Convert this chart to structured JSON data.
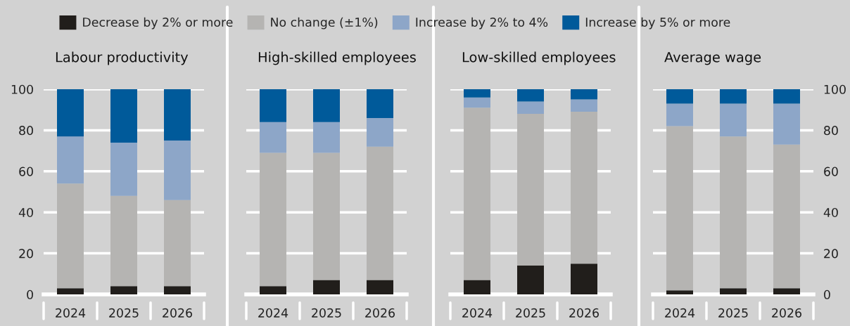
{
  "chart_data": [
    {
      "type": "bar",
      "title": "Labour productivity",
      "categories": [
        "2024",
        "2025",
        "2026"
      ],
      "stacked": true,
      "legend": "top",
      "grid": "y",
      "ylim": [
        0,
        100
      ],
      "yticks": [
        0,
        20,
        40,
        60,
        80,
        100
      ],
      "series": [
        {
          "name": "Decrease by 2% or more",
          "color": "#211e1b",
          "values": [
            3,
            4,
            4
          ]
        },
        {
          "name": "No change (±1%)",
          "color": "#b5b4b2",
          "values": [
            51,
            44,
            42
          ]
        },
        {
          "name": "Increase by 2% to 4%",
          "color": "#8da6c8",
          "values": [
            23,
            26,
            29
          ]
        },
        {
          "name": "Increase by 5% or more",
          "color": "#005a9a",
          "values": [
            23,
            26,
            25
          ]
        }
      ]
    },
    {
      "type": "bar",
      "title": "High-skilled employees",
      "categories": [
        "2024",
        "2025",
        "2026"
      ],
      "stacked": true,
      "grid": "y",
      "ylim": [
        0,
        100
      ],
      "yticks": [
        0,
        20,
        40,
        60,
        80,
        100
      ],
      "tick_labels": "x",
      "series": [
        {
          "color": "#211e1b",
          "values": [
            4,
            7,
            7
          ]
        },
        {
          "color": "#b5b4b2",
          "values": [
            65,
            62,
            65
          ]
        },
        {
          "color": "#8da6c8",
          "values": [
            15,
            15,
            14
          ]
        },
        {
          "color": "#005a9a",
          "values": [
            16,
            16,
            14
          ]
        }
      ]
    },
    {
      "type": "bar",
      "title": "Low-skilled employees",
      "categories": [
        "2024",
        "2025",
        "2026"
      ],
      "stacked": true,
      "grid": "y",
      "ylim": [
        0,
        100
      ],
      "yticks": [
        0,
        20,
        40,
        60,
        80,
        100
      ],
      "tick_labels": "x",
      "series": [
        {
          "color": "#211e1b",
          "values": [
            7,
            14,
            15
          ]
        },
        {
          "color": "#b5b4b2",
          "values": [
            84,
            74,
            74
          ]
        },
        {
          "color": "#8da6c8",
          "values": [
            5,
            6,
            6
          ]
        },
        {
          "color": "#005a9a",
          "values": [
            4,
            6,
            5
          ]
        }
      ]
    },
    {
      "type": "bar",
      "title": "Average wage",
      "categories": [
        "2024",
        "2025",
        "2026"
      ],
      "stacked": true,
      "grid": "y",
      "ylim": [
        0,
        100
      ],
      "yticks": [
        0,
        20,
        40,
        60,
        80,
        100
      ],
      "series": [
        {
          "color": "#211e1b",
          "values": [
            2,
            3,
            3
          ]
        },
        {
          "color": "#b5b4b2",
          "values": [
            80,
            74,
            70
          ]
        },
        {
          "color": "#8da6c8",
          "values": [
            11,
            16,
            20
          ]
        },
        {
          "color": "#005a9a",
          "values": [
            7,
            7,
            7
          ]
        }
      ]
    }
  ]
}
